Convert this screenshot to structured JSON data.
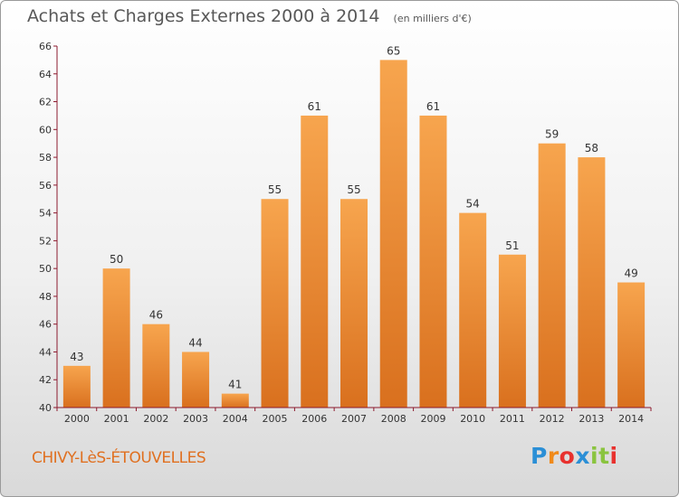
{
  "title": "Achats et Charges Externes 2000 à 2014",
  "subtitle": "(en milliers d'€)",
  "commune": "CHIVY-LèS-ÉTOUVELLES",
  "logo": {
    "letters": [
      "P",
      "r",
      "o",
      "x",
      "i",
      "t",
      "i"
    ],
    "colors": [
      "#2b8fd6",
      "#f08a1a",
      "#e8312e",
      "#2b8fd6",
      "#8ac43f",
      "#8ac43f",
      "#e8312e"
    ]
  },
  "colors": {
    "bar_light": "#f7a54e",
    "bar_dark": "#d9701e",
    "axis": "#8c1a2e",
    "text": "#333333"
  },
  "chart_data": {
    "type": "bar",
    "title": "Achats et Charges Externes 2000 à 2014",
    "subtitle": "(en milliers d'€)",
    "categories": [
      "2000",
      "2001",
      "2002",
      "2003",
      "2004",
      "2005",
      "2006",
      "2007",
      "2008",
      "2009",
      "2010",
      "2011",
      "2012",
      "2013",
      "2014"
    ],
    "values": [
      43,
      50,
      46,
      44,
      41,
      55,
      61,
      55,
      65,
      61,
      54,
      51,
      59,
      58,
      49
    ],
    "ylim": [
      40,
      66
    ],
    "yticks": [
      40,
      42,
      44,
      46,
      48,
      50,
      52,
      54,
      56,
      58,
      60,
      62,
      64,
      66
    ],
    "grid": false,
    "data_labels": true
  }
}
